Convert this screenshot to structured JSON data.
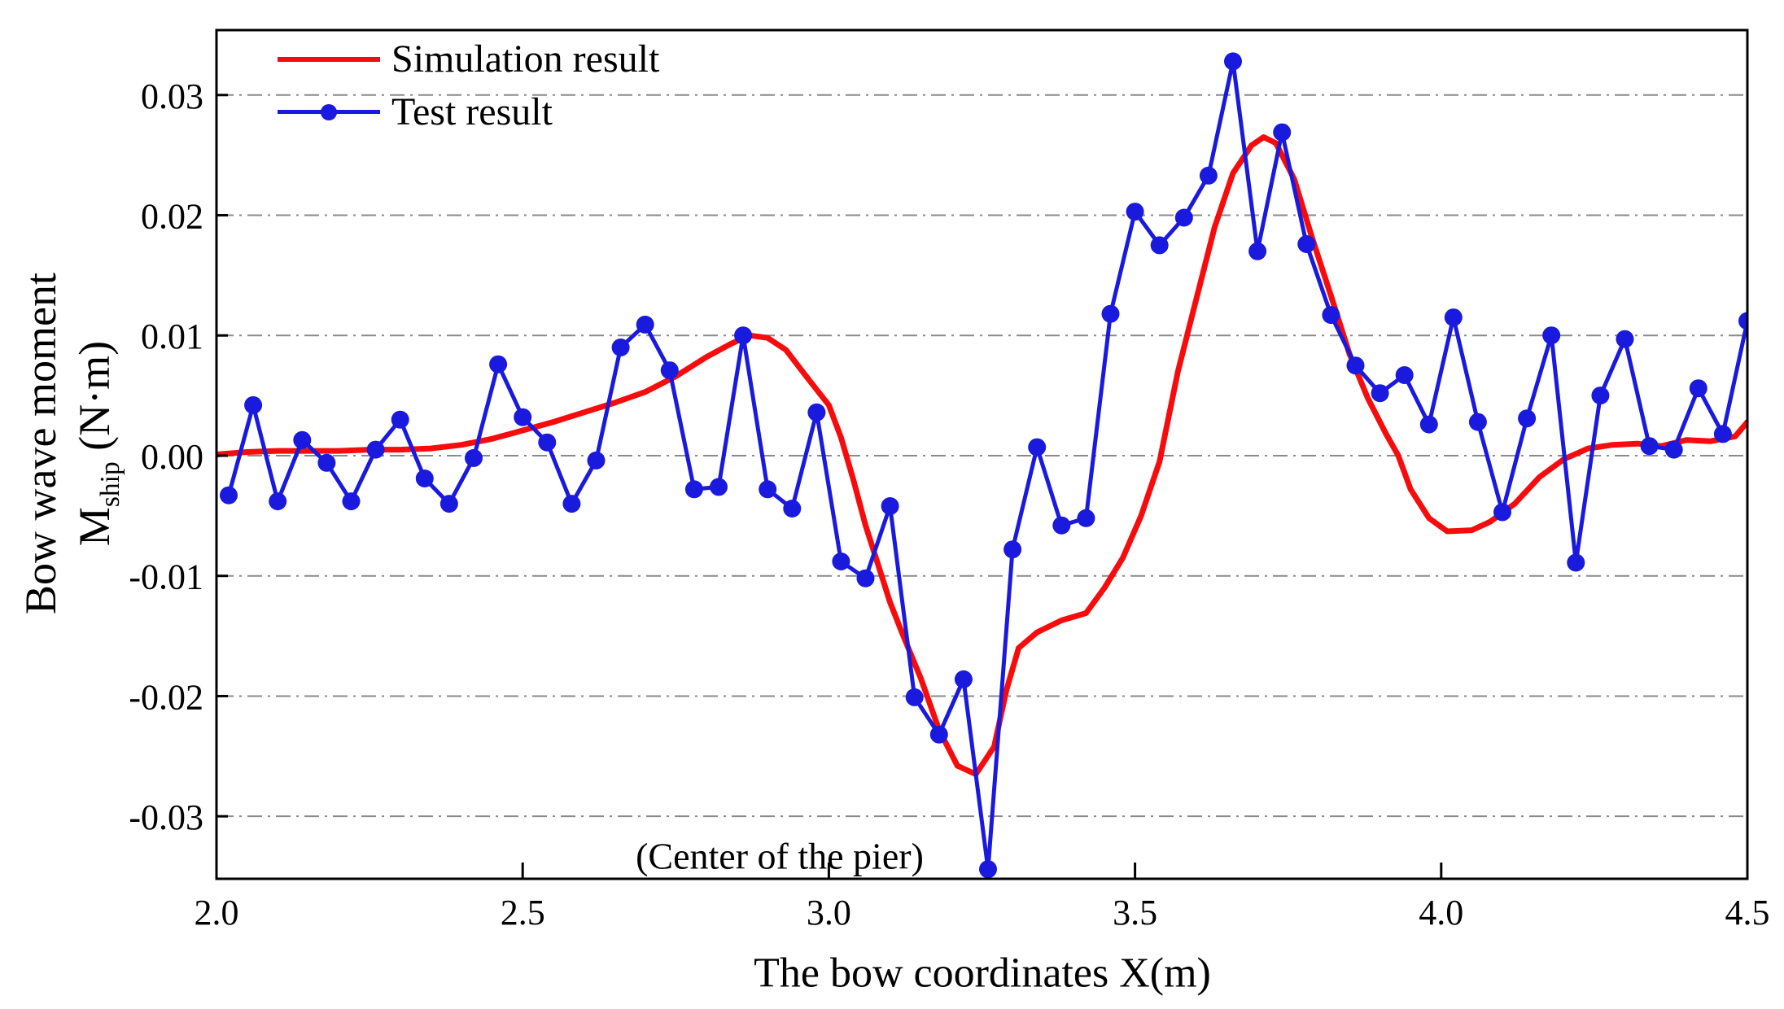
{
  "figure": {
    "background": "#ffffff",
    "frame_color": "#000000",
    "grid_color": "#8a8a8a",
    "ylabel_line1": "Bow wave moment",
    "ylabel_line2": {
      "prefix": "M",
      "sub": "ship",
      "suffix": " (N·m)"
    },
    "legend": [
      {
        "label": "Simulation result"
      },
      {
        "label": "Test result"
      }
    ]
  },
  "chart_data": {
    "type": "line",
    "title": "",
    "xlabel": "The bow coordinates X(m)",
    "ylabel": "Bow wave moment M_ship (N·m)",
    "xlim": [
      2.0,
      4.5
    ],
    "ylim": [
      -0.0352,
      0.0354
    ],
    "x_ticks": [
      "2.0",
      "2.5",
      "3.0",
      "3.5",
      "4.0",
      "4.5"
    ],
    "x_tick_values": [
      2.0,
      2.5,
      3.0,
      3.5,
      4.0,
      4.5
    ],
    "y_ticks": [
      "0.03",
      "0.02",
      "0.01",
      "0.00",
      "-0.01",
      "-0.02",
      "-0.03"
    ],
    "y_tick_values": [
      0.03,
      0.02,
      0.01,
      0.0,
      -0.01,
      -0.02,
      -0.03
    ],
    "grid": "horizontal dash-dot",
    "legend_position": "top-left inside",
    "annotation": {
      "text": "(Center of the pier)",
      "x": 2.92,
      "y": -0.0326
    },
    "series": [
      {
        "name": "Simulation result",
        "style": "line",
        "color": "#f60c0c",
        "line_width": 7,
        "x": [
          2.0,
          2.05,
          2.1,
          2.15,
          2.2,
          2.25,
          2.3,
          2.35,
          2.4,
          2.45,
          2.5,
          2.55,
          2.6,
          2.65,
          2.7,
          2.75,
          2.8,
          2.84,
          2.87,
          2.9,
          2.93,
          2.96,
          3.0,
          3.02,
          3.04,
          3.06,
          3.08,
          3.1,
          3.12,
          3.15,
          3.18,
          3.21,
          3.24,
          3.27,
          3.29,
          3.31,
          3.34,
          3.38,
          3.42,
          3.45,
          3.48,
          3.51,
          3.54,
          3.57,
          3.6,
          3.63,
          3.66,
          3.69,
          3.71,
          3.73,
          3.76,
          3.79,
          3.82,
          3.85,
          3.88,
          3.91,
          3.93,
          3.95,
          3.98,
          4.01,
          4.05,
          4.08,
          4.12,
          4.16,
          4.2,
          4.24,
          4.28,
          4.32,
          4.36,
          4.4,
          4.44,
          4.48,
          4.5
        ],
        "y": [
          0.0001,
          0.0003,
          0.0004,
          0.0004,
          0.0004,
          0.0005,
          0.0005,
          0.0006,
          0.0009,
          0.0014,
          0.0021,
          0.0028,
          0.0036,
          0.0044,
          0.0053,
          0.0066,
          0.0082,
          0.0093,
          0.01,
          0.0098,
          0.0088,
          0.0068,
          0.0042,
          0.0015,
          -0.002,
          -0.0058,
          -0.009,
          -0.0122,
          -0.0148,
          -0.0185,
          -0.0228,
          -0.0258,
          -0.0265,
          -0.0242,
          -0.0195,
          -0.016,
          -0.0147,
          -0.0137,
          -0.0131,
          -0.011,
          -0.0085,
          -0.005,
          -0.0005,
          0.007,
          0.013,
          0.019,
          0.0235,
          0.0258,
          0.0265,
          0.026,
          0.023,
          0.018,
          0.0133,
          0.0085,
          0.0048,
          0.0018,
          0.0,
          -0.0028,
          -0.0052,
          -0.0063,
          -0.0062,
          -0.0055,
          -0.004,
          -0.0018,
          -0.0003,
          0.0006,
          0.0009,
          0.001,
          0.0008,
          0.0013,
          0.0012,
          0.0016,
          0.0028
        ]
      },
      {
        "name": "Test result",
        "style": "line+marker",
        "color": "#1a1ade",
        "line_width": 5,
        "marker": "circle",
        "marker_radius": 11,
        "x": [
          2.02,
          2.06,
          2.1,
          2.14,
          2.18,
          2.22,
          2.26,
          2.3,
          2.34,
          2.38,
          2.42,
          2.46,
          2.5,
          2.54,
          2.58,
          2.62,
          2.66,
          2.7,
          2.74,
          2.78,
          2.82,
          2.86,
          2.9,
          2.94,
          2.98,
          3.02,
          3.06,
          3.1,
          3.14,
          3.18,
          3.22,
          3.26,
          3.3,
          3.34,
          3.38,
          3.42,
          3.46,
          3.5,
          3.54,
          3.58,
          3.62,
          3.66,
          3.7,
          3.74,
          3.78,
          3.82,
          3.86,
          3.9,
          3.94,
          3.98,
          4.02,
          4.06,
          4.1,
          4.14,
          4.18,
          4.22,
          4.26,
          4.3,
          4.34,
          4.38,
          4.42,
          4.46,
          4.5
        ],
        "y": [
          -0.0033,
          0.0042,
          -0.0038,
          0.0013,
          -0.0006,
          -0.0038,
          0.0005,
          0.003,
          -0.0019,
          -0.004,
          -0.0002,
          0.0076,
          0.0032,
          0.0011,
          -0.004,
          -0.0004,
          0.009,
          0.0109,
          0.0071,
          -0.0028,
          -0.0026,
          0.01,
          -0.0028,
          -0.0044,
          0.0036,
          -0.0088,
          -0.0102,
          -0.0042,
          -0.0201,
          -0.0232,
          -0.0186,
          -0.0344,
          -0.0078,
          0.0007,
          -0.0058,
          -0.0052,
          0.0118,
          0.0203,
          0.0175,
          0.0198,
          0.0233,
          0.0328,
          0.017,
          0.0269,
          0.0176,
          0.0117,
          0.0075,
          0.0052,
          0.0067,
          0.0026,
          0.0115,
          0.0028,
          -0.0047,
          0.0031,
          0.01,
          -0.0089,
          0.005,
          0.0097,
          0.0008,
          0.0005,
          0.0056,
          0.0018,
          0.0112
        ]
      }
    ]
  }
}
